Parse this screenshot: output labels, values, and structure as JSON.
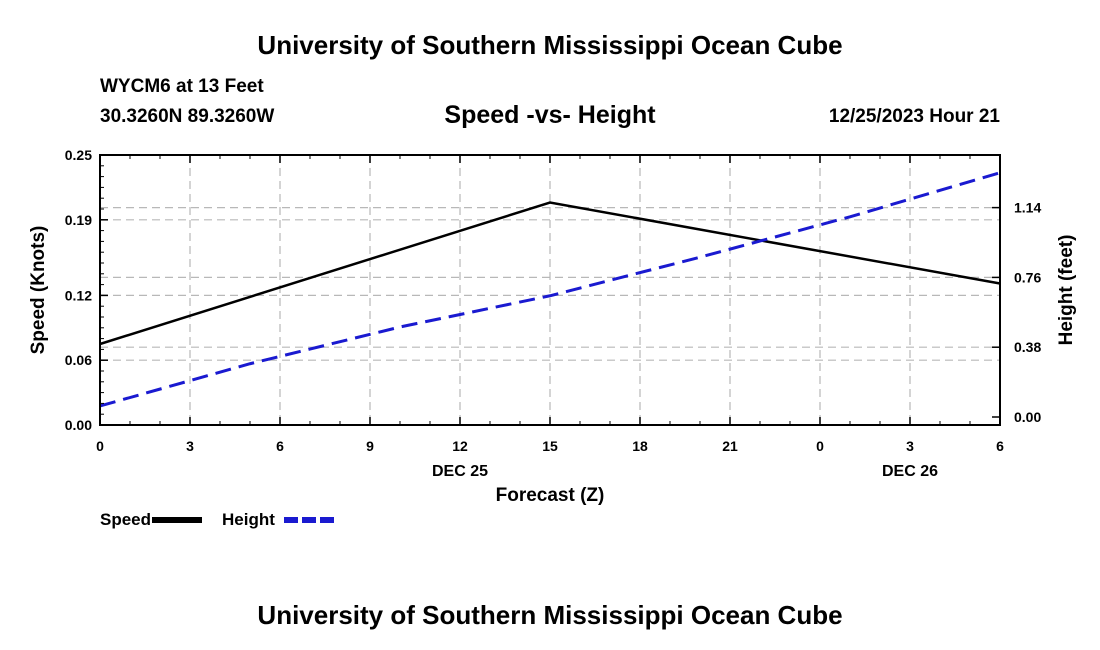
{
  "header": {
    "title": "University of Southern Mississippi Ocean Cube",
    "station": "WYCM6 at 13 Feet",
    "coords": "30.3260N  89.3260W",
    "datetime": "12/25/2023 Hour 21"
  },
  "footer": {
    "title": "University of Southern Mississippi Ocean Cube"
  },
  "chart_data": {
    "type": "line",
    "title": "Speed -vs- Height",
    "xlabel": "Forecast (Z)",
    "ylabel": "Speed (Knots)",
    "y2label": "Height (feet)",
    "x_tick_labels": [
      "0",
      "3",
      "6",
      "9",
      "12",
      "15",
      "18",
      "21",
      "0",
      "3",
      "6"
    ],
    "x_day_labels": [
      {
        "label": "DEC 25",
        "at_tick": 4
      },
      {
        "label": "DEC 26",
        "at_tick": 9
      }
    ],
    "xlim": [
      0,
      30
    ],
    "ylim": [
      0,
      0.25
    ],
    "yticks": [
      0.0,
      0.06,
      0.12,
      0.19,
      0.25
    ],
    "ytick_labels": [
      "0.00",
      "0.06",
      "0.12",
      "0.19",
      "0.25"
    ],
    "y2lim": [
      0,
      1.47
    ],
    "y2ticks": [
      0.0,
      0.38,
      0.76,
      1.14
    ],
    "y2tick_labels": [
      "0.00",
      "0.38",
      "0.76",
      "1.14"
    ],
    "grid": true,
    "series": [
      {
        "name": "Speed",
        "axis": "left",
        "color": "#000000",
        "style": "solid",
        "x": [
          0,
          15,
          30
        ],
        "values": [
          0.075,
          0.206,
          0.131
        ]
      },
      {
        "name": "Height",
        "axis": "right",
        "color": "#1a1ad0",
        "style": "dashed",
        "x": [
          0,
          5,
          10,
          15,
          20,
          25,
          30
        ],
        "values": [
          0.06,
          0.29,
          0.49,
          0.66,
          0.87,
          1.09,
          1.33
        ]
      }
    ],
    "legend": [
      {
        "label": "Speed",
        "color": "#000000",
        "style": "solid"
      },
      {
        "label": "Height",
        "color": "#1a1ad0",
        "style": "dashed"
      }
    ]
  }
}
